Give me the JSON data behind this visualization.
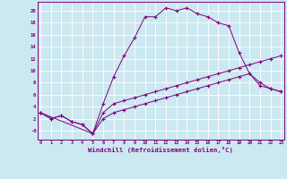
{
  "xlabel": "Windchill (Refroidissement éolien,°C)",
  "bg_color": "#cce8f0",
  "line_color": "#800080",
  "xlim": [
    -0.3,
    23.3
  ],
  "ylim": [
    -1.5,
    21.5
  ],
  "xticks": [
    0,
    1,
    2,
    3,
    4,
    5,
    6,
    7,
    8,
    9,
    10,
    11,
    12,
    13,
    14,
    15,
    16,
    17,
    18,
    19,
    20,
    21,
    22,
    23
  ],
  "yticks": [
    0,
    2,
    4,
    6,
    8,
    10,
    12,
    14,
    16,
    18,
    20
  ],
  "ytick_labels": [
    "-0",
    "2",
    "4",
    "6",
    "8",
    "10",
    "12",
    "14",
    "16",
    "18",
    "20"
  ],
  "curve1_x": [
    0,
    1,
    2,
    3,
    4,
    5,
    6,
    7,
    8,
    9,
    10,
    11,
    12,
    13,
    14,
    15,
    16,
    17,
    18,
    19,
    20,
    21,
    22,
    23
  ],
  "curve1_y": [
    3,
    2,
    2.5,
    1.5,
    1.0,
    -0.5,
    4.5,
    9.0,
    12.5,
    15.5,
    19.0,
    19.0,
    20.5,
    20.0,
    20.5,
    19.5,
    19.0,
    18.0,
    17.5,
    13.0,
    9.5,
    8.0,
    7.0,
    6.5
  ],
  "curve2_x": [
    0,
    5,
    6,
    7,
    8,
    9,
    10,
    11,
    12,
    13,
    14,
    15,
    16,
    17,
    18,
    19,
    20,
    21,
    22,
    23
  ],
  "curve2_y": [
    3,
    -0.5,
    3.0,
    4.5,
    5.0,
    5.5,
    6.0,
    6.5,
    7.0,
    7.5,
    8.0,
    8.5,
    9.0,
    9.5,
    10.0,
    10.5,
    11.0,
    11.5,
    12.0,
    12.5
  ],
  "curve3_x": [
    0,
    1,
    2,
    3,
    4,
    5,
    6,
    7,
    8,
    9,
    10,
    11,
    12,
    13,
    14,
    15,
    16,
    17,
    18,
    19,
    20,
    21,
    22,
    23
  ],
  "curve3_y": [
    3,
    2,
    2.5,
    1.5,
    1.0,
    -0.5,
    2.0,
    3.0,
    3.5,
    4.0,
    4.5,
    5.0,
    5.5,
    6.0,
    6.5,
    7.0,
    7.5,
    8.0,
    8.5,
    9.0,
    9.5,
    7.5,
    7.0,
    6.5
  ]
}
